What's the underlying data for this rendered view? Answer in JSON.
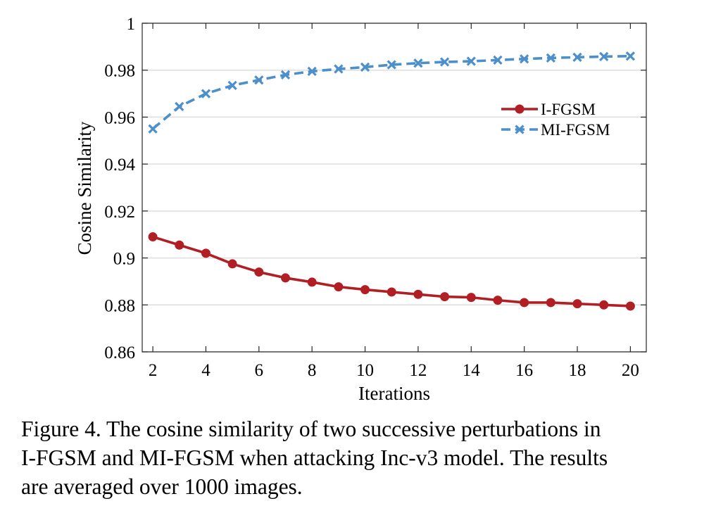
{
  "chart_data": {
    "type": "line",
    "title": "",
    "xlabel": "Iterations",
    "ylabel": "Cosine Similarity",
    "xlim": [
      1.6,
      20.6
    ],
    "ylim": [
      0.86,
      1.0
    ],
    "xticks": [
      2,
      4,
      6,
      8,
      10,
      12,
      14,
      16,
      18,
      20
    ],
    "xtick_labels": [
      "2",
      "4",
      "6",
      "8",
      "10",
      "12",
      "14",
      "16",
      "18",
      "20"
    ],
    "yticks": [
      0.86,
      0.88,
      0.9,
      0.92,
      0.94,
      0.96,
      0.98,
      1.0
    ],
    "ytick_labels": [
      "0.86",
      "0.88",
      "0.9",
      "0.92",
      "0.94",
      "0.96",
      "0.98",
      "1"
    ],
    "grid": true,
    "legend_position": "right",
    "x": [
      2,
      3,
      4,
      5,
      6,
      7,
      8,
      9,
      10,
      11,
      12,
      13,
      14,
      15,
      16,
      17,
      18,
      19,
      20
    ],
    "series": [
      {
        "name": "I-FGSM",
        "color": "#b11f24",
        "line_style": "solid",
        "marker": "circle",
        "values": [
          0.909,
          0.9055,
          0.902,
          0.8975,
          0.894,
          0.8915,
          0.8897,
          0.8877,
          0.8865,
          0.8855,
          0.8845,
          0.8835,
          0.8832,
          0.882,
          0.881,
          0.881,
          0.8805,
          0.88,
          0.8795
        ]
      },
      {
        "name": "MI-FGSM",
        "color": "#4c8fcb",
        "line_style": "dashed",
        "marker": "x",
        "values": [
          0.955,
          0.9645,
          0.97,
          0.9735,
          0.9758,
          0.978,
          0.9795,
          0.9805,
          0.9813,
          0.9823,
          0.983,
          0.9835,
          0.9838,
          0.9843,
          0.9848,
          0.9852,
          0.9855,
          0.9858,
          0.986
        ]
      }
    ]
  },
  "caption": {
    "text": "Figure 4. The cosine similarity of two successive perturbations in\nI-FGSM and MI-FGSM when attacking Inc-v3 model. The results\nare averaged over 1000 images."
  }
}
